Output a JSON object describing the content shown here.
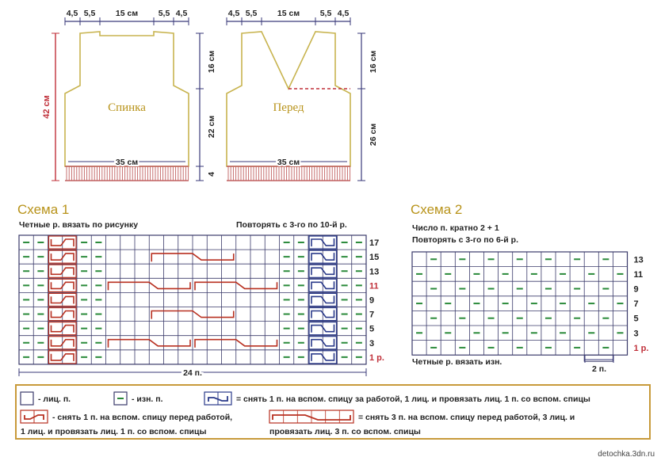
{
  "schema_pieces": [
    {
      "id": "back",
      "label": "Спинка",
      "top_dims": [
        "4,5",
        "5,5",
        "15 см",
        "5,5",
        "4,5"
      ],
      "height_total": "42 см",
      "right_dims": [
        "16 см",
        "22 см",
        "4"
      ],
      "bottom_width": "35 см"
    },
    {
      "id": "front",
      "label": "Перед",
      "top_dims": [
        "4,5",
        "5,5",
        "15 см",
        "5,5",
        "4,5"
      ],
      "right_dims": [
        "16 см",
        "26 см"
      ],
      "bottom_width": "35 см"
    }
  ],
  "scheme1": {
    "title": "Схема 1",
    "note_left": "Четные р. вязать по рисунку",
    "note_right": "Повторять с 3-го по 10-й р.",
    "row_labels": [
      "17",
      "15",
      "13",
      "11",
      "9",
      "7",
      "5",
      "3",
      "1 р."
    ],
    "highlight_rows": [
      "11",
      "1 р."
    ],
    "stitch_count": "24 п."
  },
  "scheme2": {
    "title": "Схема 2",
    "note1": "Число п. кратно 2 + 1",
    "note2": "Повторять с 3-го по 6-й р.",
    "row_labels": [
      "13",
      "11",
      "9",
      "7",
      "5",
      "3",
      "1 р."
    ],
    "highlight_rows": [
      "1 р."
    ],
    "bottom_note": "Четные р. вязать изн.",
    "repeat": "2 п."
  },
  "legend": {
    "knit": "- лиц. п.",
    "purl": "- изн. п.",
    "cable_back": "= снять 1 п. на вспом. спицу за работой, 1 лиц. и провязать лиц. 1 п. со вспом. спицы",
    "cable_front_1": "- снять 1 п. на вспом. спицу перед работой,",
    "cable_front_2": "1 лиц. и провязать лиц. 1 п. со вспом. спицы",
    "cable3_1": "= снять 3 п. на вспом. спицу перед работой, 3 лиц. и",
    "cable3_2": "провязать лиц. 3 п. со вспом. спицы"
  },
  "colors": {
    "outline": "#c8b450",
    "fringe": "#c06060",
    "dim": "#3a3a7a",
    "dim_red": "#c0303a",
    "purl_mark": "#2a8a3a",
    "cable_red": "#b83020",
    "cable_blue": "#2a3a8a",
    "grid": "#3a3a6a",
    "title": "#b8931a",
    "legend_border": "#c89a3a"
  },
  "footer": "detochka.3dn.ru"
}
